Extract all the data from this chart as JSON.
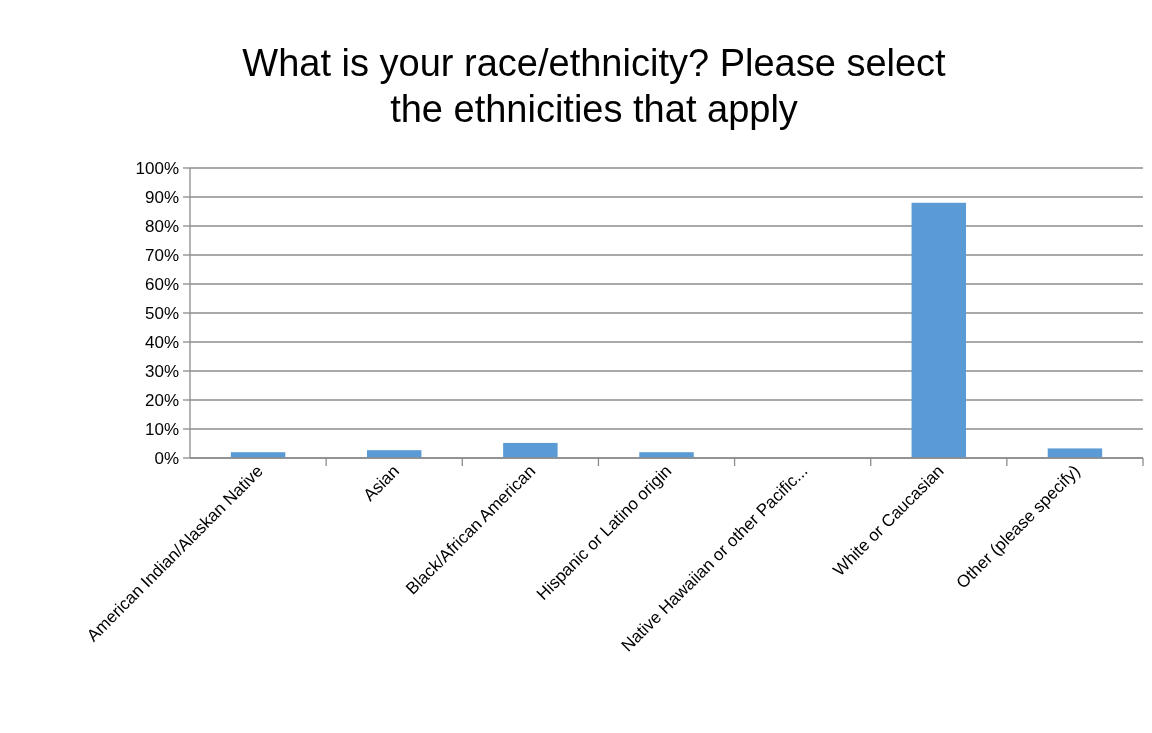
{
  "chart_data": {
    "type": "bar",
    "title": "What is your race/ethnicity? Please select the ethnicities that apply",
    "categories": [
      "American Indian/Alaskan Native",
      "Asian",
      "Black/African American",
      "Hispanic or Latino origin",
      "Native Hawaiian or other Pacific...",
      "White or Caucasian",
      "Other (please specify)"
    ],
    "values": [
      2,
      2.7,
      5.2,
      2,
      0,
      88,
      3.3
    ],
    "color": "#5b9bd5",
    "ylim": [
      0,
      100
    ],
    "yticks": [
      {
        "value": 0,
        "label": "0%"
      },
      {
        "value": 10,
        "label": "10%"
      },
      {
        "value": 20,
        "label": "20%"
      },
      {
        "value": 30,
        "label": "30%"
      },
      {
        "value": 40,
        "label": "40%"
      },
      {
        "value": 50,
        "label": "50%"
      },
      {
        "value": 60,
        "label": "60%"
      },
      {
        "value": 70,
        "label": "70%"
      },
      {
        "value": 80,
        "label": "80%"
      },
      {
        "value": 90,
        "label": "90%"
      },
      {
        "value": 100,
        "label": "100%"
      }
    ],
    "grid": "y"
  }
}
